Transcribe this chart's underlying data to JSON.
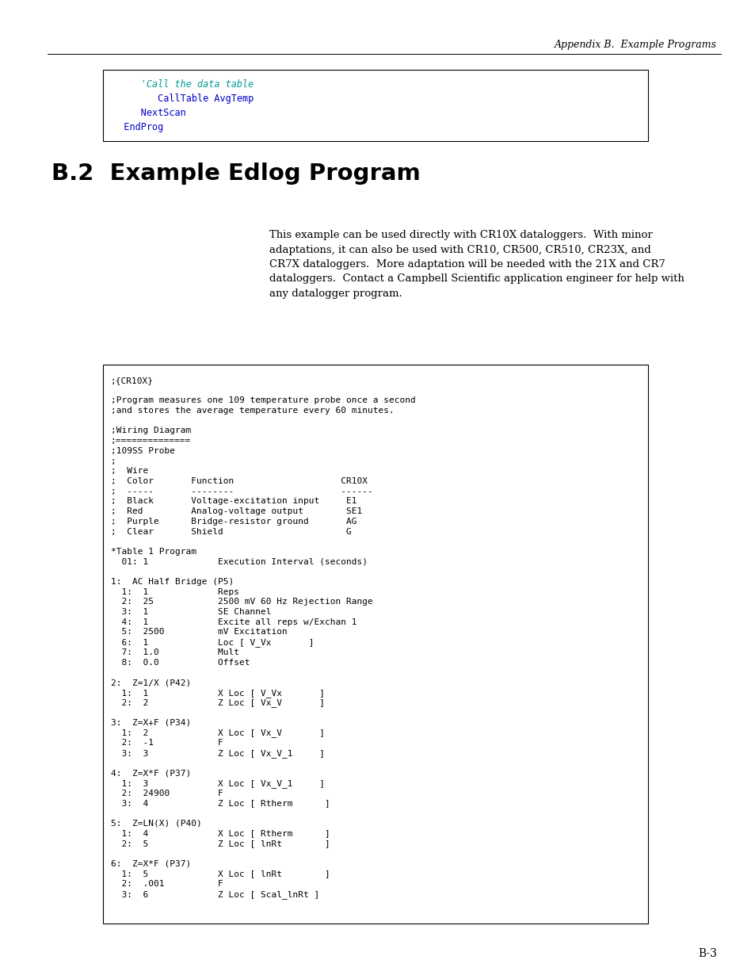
{
  "page_width": 9.54,
  "page_height": 12.35,
  "background_color": "#ffffff",
  "header_text": "Appendix B.  Example Programs",
  "header_font_size": 9,
  "footer_text": "B-3",
  "footer_font_size": 10,
  "top_code_box": {
    "lines": [
      {
        "text": "      'Call the data table",
        "color": "#009999",
        "italic": true
      },
      {
        "text": "         CallTable AvgTemp",
        "color": "#0000cc",
        "italic": false
      },
      {
        "text": "      NextScan",
        "color": "#0000cc",
        "italic": false
      },
      {
        "text": "   EndProg",
        "color": "#0000cc",
        "italic": false
      }
    ]
  },
  "section_title": "B.2  Example Edlog Program",
  "section_title_font_size": 21,
  "description_text": "This example can be used directly with CR10X dataloggers.  With minor\nadaptations, it can also be used with CR10, CR500, CR510, CR23X, and\nCR7X dataloggers.  More adaptation will be needed with the 21X and CR7\ndataloggers.  Contact a Campbell Scientific application engineer for help with\nany datalogger program.",
  "description_font_size": 9.5,
  "main_code_box": [
    ";{CR10X}",
    "",
    ";Program measures one 109 temperature probe once a second",
    ";and stores the average temperature every 60 minutes.",
    "",
    ";Wiring Diagram",
    ";==============",
    ";109SS Probe",
    ";",
    ";  Wire",
    ";  Color       Function                    CR10X",
    ";  -----       --------                    ------",
    ";  Black       Voltage-excitation input     E1",
    ";  Red         Analog-voltage output        SE1",
    ";  Purple      Bridge-resistor ground       AG",
    ";  Clear       Shield                       G",
    "",
    "*Table 1 Program",
    "  01: 1             Execution Interval (seconds)",
    "",
    "1:  AC Half Bridge (P5)",
    "  1:  1             Reps",
    "  2:  25            2500 mV 60 Hz Rejection Range",
    "  3:  1             SE Channel",
    "  4:  1             Excite all reps w/Exchan 1",
    "  5:  2500          mV Excitation",
    "  6:  1             Loc [ V_Vx       ]",
    "  7:  1.0           Mult",
    "  8:  0.0           Offset",
    "",
    "2:  Z=1/X (P42)",
    "  1:  1             X Loc [ V_Vx       ]",
    "  2:  2             Z Loc [ Vx_V       ]",
    "",
    "3:  Z=X+F (P34)",
    "  1:  2             X Loc [ Vx_V       ]",
    "  2:  -1            F",
    "  3:  3             Z Loc [ Vx_V_1     ]",
    "",
    "4:  Z=X*F (P37)",
    "  1:  3             X Loc [ Vx_V_1     ]",
    "  2:  24900         F",
    "  3:  4             Z Loc [ Rtherm      ]",
    "",
    "5:  Z=LN(X) (P40)",
    "  1:  4             X Loc [ Rtherm      ]",
    "  2:  5             Z Loc [ lnRt        ]",
    "",
    "6:  Z=X*F (P37)",
    "  1:  5             X Loc [ lnRt        ]",
    "  2:  .001          F",
    "  3:  6             Z Loc [ Scal_lnRt ]"
  ]
}
